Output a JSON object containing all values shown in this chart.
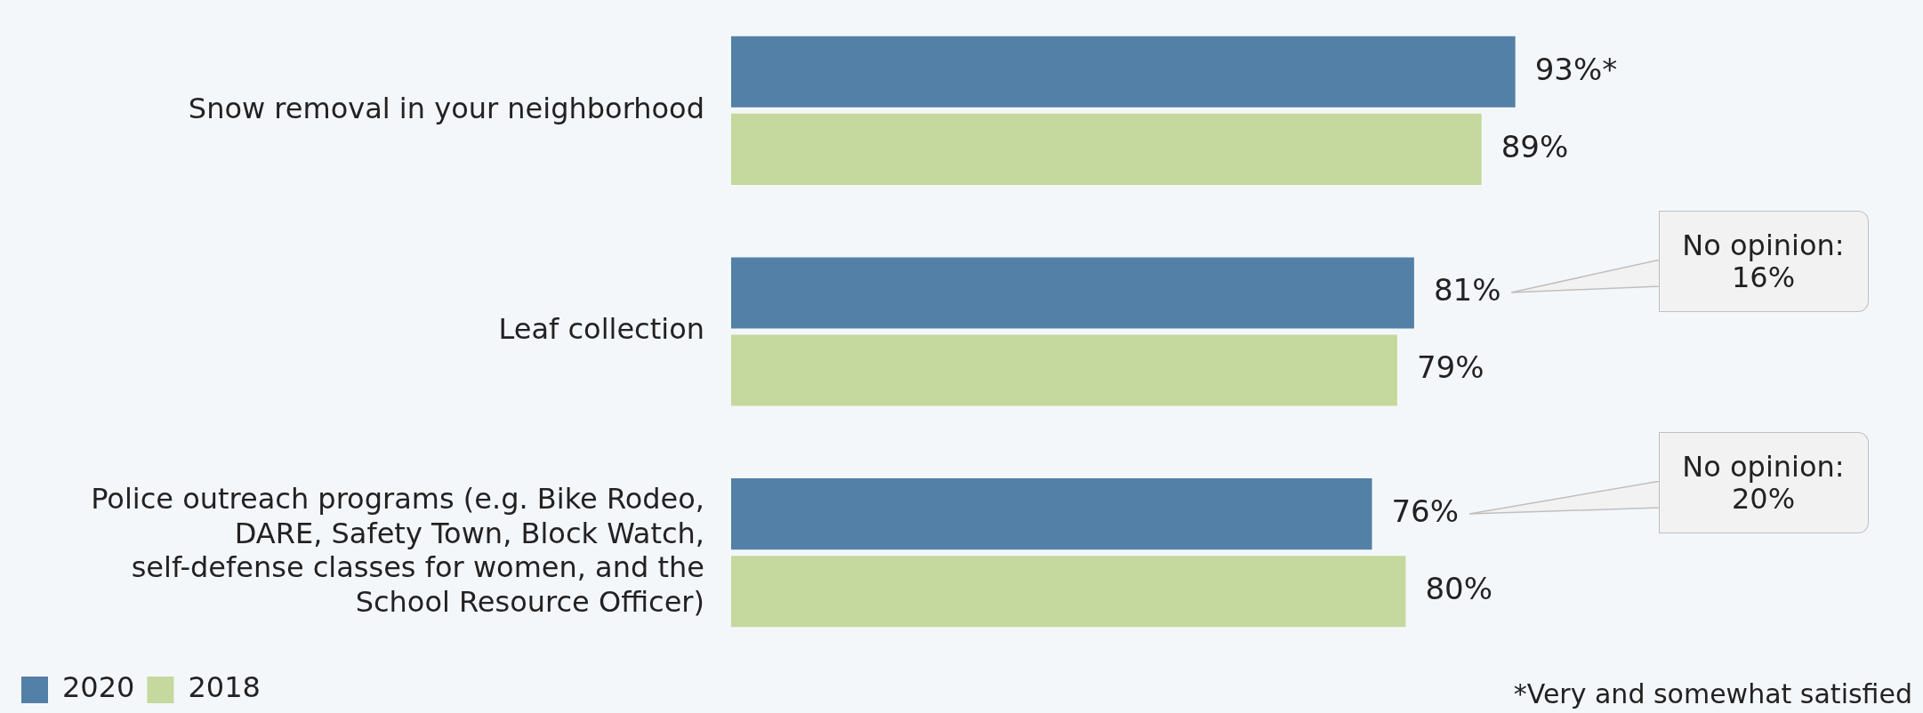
{
  "chart_data": {
    "type": "bar",
    "orientation": "horizontal",
    "categories": [
      "Snow removal in your neighborhood",
      "Leaf collection",
      "Police outreach programs (e.g. Bike Rodeo, DARE, Safety Town, Block Watch, self-defense classes for women, and the School Resource Officer)"
    ],
    "series": [
      {
        "name": "2020",
        "color": "#5380a6",
        "values": [
          93,
          81,
          76
        ],
        "value_labels": [
          "93%*",
          "81%",
          "76%"
        ]
      },
      {
        "name": "2018",
        "color": "#c5d89d",
        "values": [
          89,
          79,
          80
        ],
        "value_labels": [
          "89%",
          "79%",
          "80%"
        ]
      }
    ],
    "tick_labels": "y",
    "legend": "bottom",
    "annotations": [
      "No opinion: 16%",
      "No opinion: 20%",
      "*Very and somewhat satisfied"
    ]
  }
}
